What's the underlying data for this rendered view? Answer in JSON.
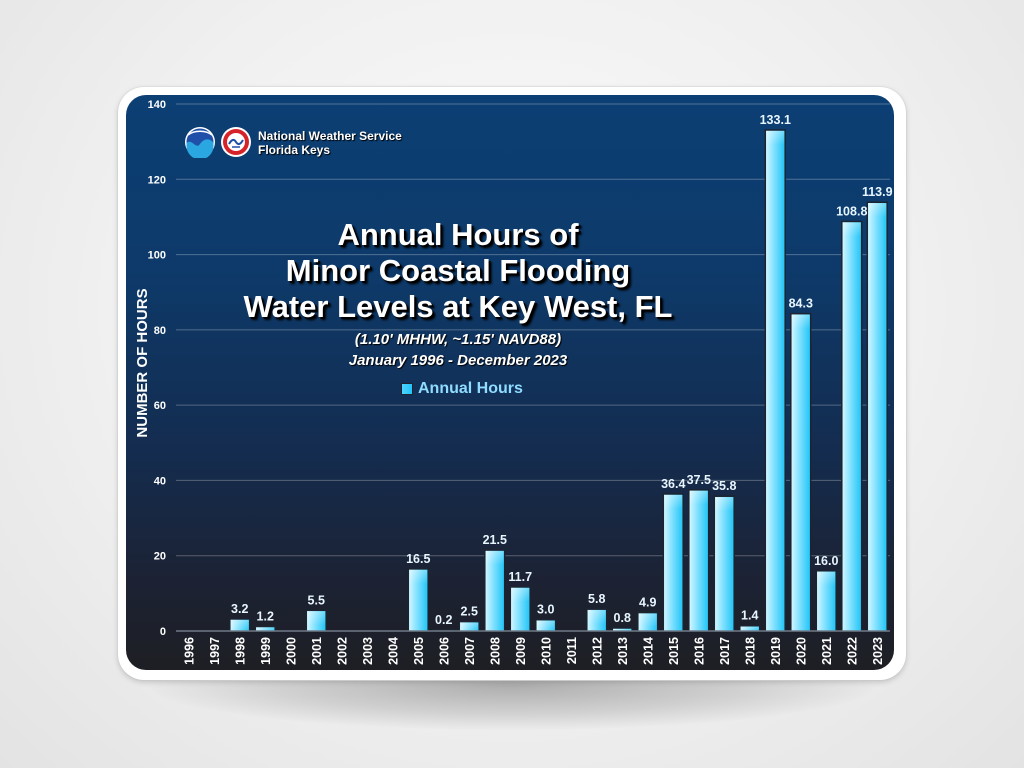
{
  "header": {
    "org_line1": "National Weather Service",
    "org_line2": "Florida Keys",
    "logos": [
      "noaa-logo",
      "nws-logo"
    ]
  },
  "title": {
    "line1": "Annual Hours of",
    "line2": "Minor Coastal Flooding",
    "line3": "Water Levels at Key West, FL",
    "sub1": "(1.10' MHHW, ~1.15' NAVD88)",
    "sub2": "January 1996 - December 2023"
  },
  "legend": {
    "label": "Annual Hours"
  },
  "colors": {
    "bar_light": "#b9f0ff",
    "bar_dark": "#1cc3f6",
    "background_top": "#0c3f74",
    "background_bottom": "#1e1f24"
  },
  "chart_data": {
    "type": "bar",
    "title": "Annual Hours of Minor Coastal Flooding Water Levels at Key West, FL",
    "ylabel": "NUMBER OF HOURS",
    "xlabel": "",
    "ylim": [
      0,
      140
    ],
    "yticks": [
      0,
      20,
      40,
      60,
      80,
      100,
      120,
      140
    ],
    "grid": true,
    "legend_position": "top-center",
    "categories": [
      "1996",
      "1997",
      "1998",
      "1999",
      "2000",
      "2001",
      "2002",
      "2003",
      "2004",
      "2005",
      "2006",
      "2007",
      "2008",
      "2009",
      "2010",
      "2011",
      "2012",
      "2013",
      "2014",
      "2015",
      "2016",
      "2017",
      "2018",
      "2019",
      "2020",
      "2021",
      "2022",
      "2023"
    ],
    "series": [
      {
        "name": "Annual Hours",
        "values": [
          0,
          0,
          3.2,
          1.2,
          0,
          5.5,
          0,
          0,
          0,
          16.5,
          0.2,
          2.5,
          21.5,
          11.7,
          3.0,
          0,
          5.8,
          0.8,
          4.9,
          36.4,
          37.5,
          35.8,
          1.4,
          133.1,
          84.3,
          16.0,
          108.8,
          113.9
        ],
        "labels": [
          "",
          "",
          "3.2",
          "1.2",
          "",
          "5.5",
          "",
          "",
          "",
          "16.5",
          "0.2",
          "2.5",
          "21.5",
          "11.7",
          "3.0",
          "",
          "5.8",
          "0.8",
          "4.9",
          "36.4",
          "37.5",
          "35.8",
          "1.4",
          "133.1",
          "84.3",
          "16.0",
          "108.8",
          "113.9"
        ]
      }
    ]
  }
}
